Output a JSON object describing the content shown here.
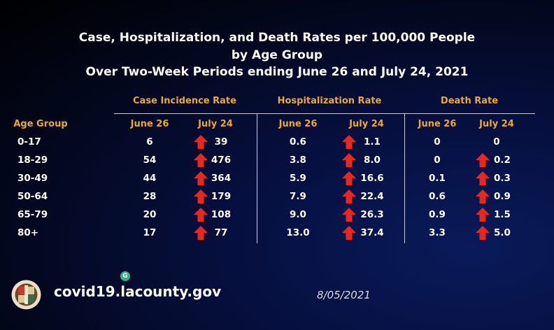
{
  "title": [
    "Case, Hospitalization, and Death Rates per 100,000 People",
    "by Age Group",
    "Over Two-Week Periods ending June 26 and July 24, 2021"
  ],
  "groups": [
    "Case Incidence Rate",
    "Hospitalization Rate",
    "Death Rate"
  ],
  "age_header": "Age Group",
  "sub": [
    "June 26",
    "July 24"
  ],
  "rows": [
    {
      "age": "0-17",
      "v": [
        "6",
        "39",
        "0.6",
        "1.1",
        "0",
        "0"
      ],
      "up": [
        true,
        true,
        false
      ]
    },
    {
      "age": "18-29",
      "v": [
        "54",
        "476",
        "3.8",
        "8.0",
        "0",
        "0.2"
      ],
      "up": [
        true,
        true,
        true
      ]
    },
    {
      "age": "30-49",
      "v": [
        "44",
        "364",
        "5.9",
        "16.6",
        "0.1",
        "0.3"
      ],
      "up": [
        true,
        true,
        true
      ]
    },
    {
      "age": "50-64",
      "v": [
        "28",
        "179",
        "7.9",
        "22.4",
        "0.6",
        "0.9"
      ],
      "up": [
        true,
        true,
        true
      ]
    },
    {
      "age": "65-79",
      "v": [
        "20",
        "108",
        "9.0",
        "26.3",
        "0.9",
        "1.5"
      ],
      "up": [
        true,
        true,
        true
      ]
    },
    {
      "age": "80+",
      "v": [
        "17",
        "77",
        "13.0",
        "37.4",
        "3.3",
        "5.0"
      ],
      "up": [
        true,
        true,
        true
      ]
    }
  ],
  "arrow_color": "#e8281e",
  "footer": {
    "url": "covid19.lacounty.gov",
    "date": "8/05/2021",
    "seal_text": "County of Los Angeles",
    "grammarly": "G"
  }
}
